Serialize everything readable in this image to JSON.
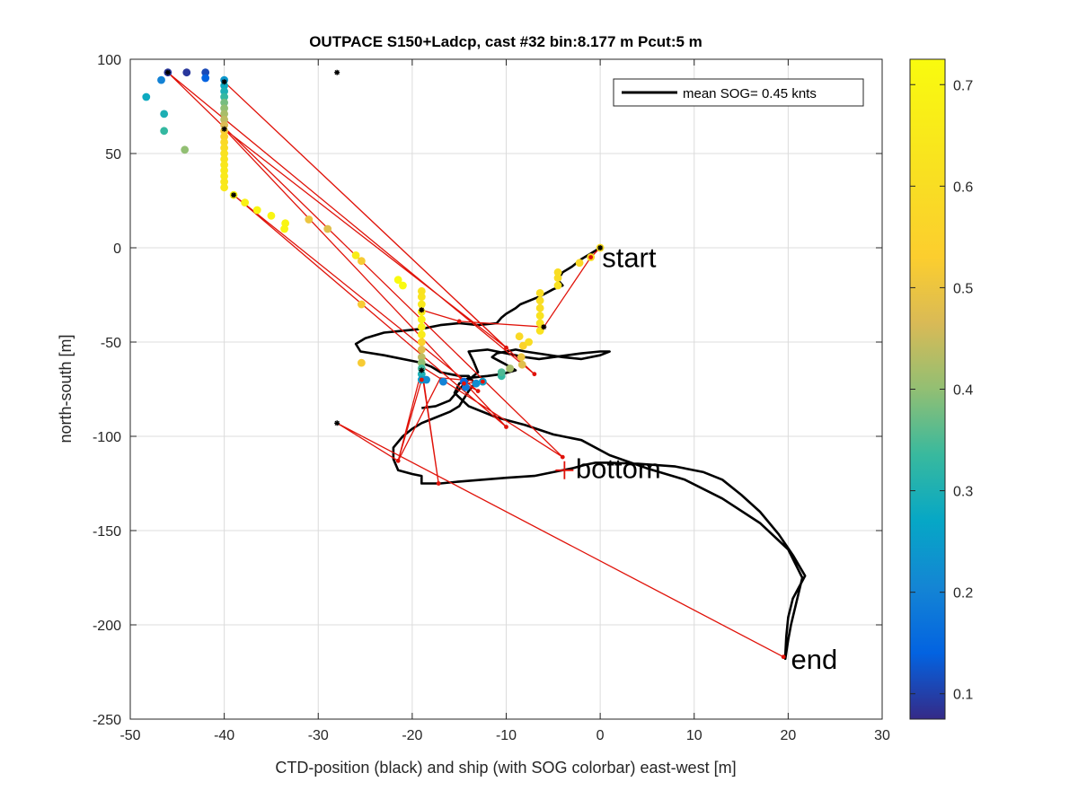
{
  "chart_data": {
    "type": "scatter",
    "title": "OUTPACE S150+Ladcp, cast #32 bin:8.177 m  Pcut:5 m",
    "xlabel": "CTD-position (black) and ship (with SOG colorbar) east-west [m]",
    "ylabel": "north-south [m]",
    "xlim": [
      -50,
      30
    ],
    "ylim": [
      -250,
      100
    ],
    "xticks": [
      -50,
      -40,
      -30,
      -20,
      -10,
      0,
      10,
      20,
      30
    ],
    "yticks": [
      100,
      50,
      0,
      -50,
      -100,
      -150,
      -200,
      -250
    ],
    "grid": true,
    "legend": {
      "label": "mean SOG=  0.45 knts",
      "location": "top-right"
    },
    "colorbar": {
      "ticks": [
        0.1,
        0.2,
        0.3,
        0.4,
        0.5,
        0.6,
        0.7
      ],
      "range": [
        0.075,
        0.725
      ]
    },
    "annotations": [
      {
        "text": "start",
        "x": 0.2,
        "y": -5
      },
      {
        "text": "bottom",
        "x": -2.6,
        "y": -117
      },
      {
        "text": "end",
        "x": 20.3,
        "y": -218
      }
    ],
    "ctd_track": [
      [
        0,
        0
      ],
      [
        -1,
        -3
      ],
      [
        -2,
        -6
      ],
      [
        -2.5,
        -8
      ],
      [
        -3,
        -10
      ],
      [
        -4,
        -13
      ],
      [
        -4.5,
        -17
      ],
      [
        -4,
        -20
      ],
      [
        -5,
        -22
      ],
      [
        -6.5,
        -26
      ],
      [
        -8.5,
        -30
      ],
      [
        -9,
        -32
      ],
      [
        -10,
        -35
      ],
      [
        -10.5,
        -37
      ],
      [
        -11,
        -40
      ],
      [
        -13,
        -41
      ],
      [
        -15,
        -40
      ],
      [
        -17,
        -41
      ],
      [
        -19,
        -43
      ],
      [
        -21,
        -44
      ],
      [
        -23,
        -45
      ],
      [
        -25,
        -48
      ],
      [
        -26,
        -51
      ],
      [
        -25.5,
        -55
      ],
      [
        -23,
        -57
      ],
      [
        -22,
        -58
      ],
      [
        -20,
        -60
      ],
      [
        -19,
        -61
      ],
      [
        -18,
        -63
      ],
      [
        -17,
        -66
      ],
      [
        -16,
        -67
      ],
      [
        -15,
        -68
      ],
      [
        -14,
        -68
      ],
      [
        -13.5,
        -71
      ],
      [
        -13.5,
        -73
      ],
      [
        -14,
        -76
      ],
      [
        -14.5,
        -80
      ],
      [
        -15,
        -84
      ],
      [
        -16,
        -87
      ],
      [
        -17.5,
        -90
      ],
      [
        -19,
        -93
      ],
      [
        -20,
        -96
      ],
      [
        -21,
        -100
      ],
      [
        -22,
        -106
      ],
      [
        -22,
        -112
      ],
      [
        -21.5,
        -118
      ],
      [
        -20,
        -120
      ],
      [
        -19,
        -121
      ],
      [
        -19,
        -125
      ],
      [
        -17,
        -125
      ],
      [
        -15,
        -124
      ],
      [
        -10,
        -122
      ],
      [
        -7,
        -121
      ],
      [
        -5,
        -119
      ],
      [
        -3,
        -117
      ],
      [
        -1.5,
        -115
      ],
      [
        -0.5,
        -114
      ],
      [
        1,
        -114
      ],
      [
        4,
        -114.5
      ],
      [
        8,
        -116
      ],
      [
        11,
        -119
      ],
      [
        13,
        -123
      ],
      [
        15,
        -131
      ],
      [
        17,
        -140
      ],
      [
        19,
        -152
      ],
      [
        20.5,
        -163
      ],
      [
        21.8,
        -174
      ],
      [
        20.5,
        -186
      ],
      [
        20,
        -196
      ],
      [
        19.8,
        -206
      ],
      [
        19.7,
        -216
      ],
      [
        19.7,
        -218
      ],
      [
        20,
        -208
      ],
      [
        20.3,
        -200
      ],
      [
        21.5,
        -175
      ],
      [
        20,
        -160
      ],
      [
        17,
        -146
      ],
      [
        13,
        -133
      ],
      [
        9,
        -123
      ],
      [
        5,
        -117
      ],
      [
        1,
        -110
      ],
      [
        -2,
        -102
      ],
      [
        -5,
        -99
      ],
      [
        -8,
        -94
      ],
      [
        -11,
        -90
      ],
      [
        -14,
        -84
      ],
      [
        -15.5,
        -77
      ],
      [
        -15,
        -72
      ],
      [
        -14,
        -69
      ],
      [
        -12,
        -68
      ],
      [
        -10.5,
        -67
      ],
      [
        -9,
        -65
      ],
      [
        -10,
        -62
      ],
      [
        -11.5,
        -58
      ],
      [
        -11,
        -56
      ],
      [
        -9,
        -54
      ],
      [
        -8,
        -55
      ],
      [
        -6,
        -56.5
      ],
      [
        -4,
        -58
      ],
      [
        -2,
        -59
      ],
      [
        0,
        -57
      ],
      [
        1,
        -55
      ],
      [
        0,
        -55
      ],
      [
        -2,
        -56
      ],
      [
        -3.5,
        -57
      ],
      [
        -5,
        -58
      ],
      [
        -6.5,
        -59
      ],
      [
        -8,
        -58
      ],
      [
        -10,
        -56
      ],
      [
        -12,
        -54
      ],
      [
        -14,
        -55
      ],
      [
        -13.5,
        -60
      ],
      [
        -13,
        -66
      ],
      [
        -14,
        -70
      ],
      [
        -15,
        -75
      ],
      [
        -16,
        -81
      ],
      [
        -17.5,
        -84
      ],
      [
        -19,
        -85
      ]
    ],
    "red_track": [
      [
        0,
        0
      ],
      [
        -1,
        -5
      ],
      [
        -6,
        -42
      ],
      [
        -15,
        -39
      ],
      [
        -19,
        -33
      ],
      [
        -19,
        -70
      ],
      [
        -21.5,
        -113
      ],
      [
        -19,
        -65
      ],
      [
        -17.2,
        -125
      ],
      [
        -19,
        -63
      ],
      [
        -4,
        -111
      ],
      [
        -46,
        93
      ],
      [
        -7,
        -67
      ],
      [
        -40,
        88
      ],
      [
        -10,
        -53
      ],
      [
        -40,
        63
      ],
      [
        -10,
        -95
      ],
      [
        -39,
        28
      ],
      [
        -13,
        -76
      ],
      [
        -14.5,
        -72
      ],
      [
        -12.5,
        -71
      ],
      [
        -17,
        -69
      ],
      [
        -21.5,
        -113
      ],
      [
        -28,
        -93
      ],
      [
        19.5,
        -217
      ]
    ],
    "red_markers": [
      [
        -1,
        -5
      ],
      [
        -6,
        -42
      ],
      [
        -15,
        -39
      ],
      [
        -19,
        -33
      ],
      [
        -19,
        -70
      ],
      [
        -21.5,
        -113
      ],
      [
        -17.2,
        -125
      ],
      [
        -4,
        -111
      ],
      [
        -7,
        -67
      ],
      [
        -10,
        -53
      ],
      [
        -10,
        -95
      ],
      [
        -13,
        -76
      ],
      [
        -12.5,
        -71
      ],
      [
        -14.5,
        -72
      ],
      [
        19.5,
        -217
      ]
    ],
    "black_markers": [
      [
        0,
        0
      ],
      [
        -6,
        -42
      ],
      [
        -19,
        -33
      ],
      [
        -19,
        -65
      ],
      [
        -46,
        93
      ],
      [
        -40,
        88
      ],
      [
        -40,
        63
      ],
      [
        -39,
        28
      ],
      [
        -28,
        93
      ],
      [
        -28,
        -93
      ]
    ],
    "bottom_marker": [
      -3.8,
      -118
    ],
    "ship_points": [
      [
        -46,
        93,
        0.09
      ],
      [
        -44,
        93,
        0.09
      ],
      [
        -42,
        93,
        0.11
      ],
      [
        -42,
        90,
        0.14
      ],
      [
        -46.7,
        89,
        0.2
      ],
      [
        -48.3,
        80,
        0.28
      ],
      [
        -46.4,
        71,
        0.3
      ],
      [
        -46.4,
        62,
        0.33
      ],
      [
        -44.2,
        52,
        0.4
      ],
      [
        -40,
        89,
        0.24
      ],
      [
        -40,
        86,
        0.28
      ],
      [
        -40,
        83,
        0.3
      ],
      [
        -40,
        80,
        0.33
      ],
      [
        -40,
        77,
        0.38
      ],
      [
        -40,
        74,
        0.4
      ],
      [
        -40,
        71,
        0.42
      ],
      [
        -40,
        68,
        0.44
      ],
      [
        -40,
        65,
        0.47
      ],
      [
        -40,
        62,
        0.52
      ],
      [
        -40,
        59,
        0.55
      ],
      [
        -40,
        56,
        0.58
      ],
      [
        -40,
        53,
        0.6
      ],
      [
        -40,
        50,
        0.62
      ],
      [
        -40,
        47,
        0.63
      ],
      [
        -40,
        44,
        0.64
      ],
      [
        -40,
        41,
        0.65
      ],
      [
        -40,
        38,
        0.65
      ],
      [
        -40,
        35,
        0.64
      ],
      [
        -40,
        32,
        0.65
      ],
      [
        -39,
        28,
        0.7
      ],
      [
        -37.8,
        24,
        0.68
      ],
      [
        -36.5,
        20,
        0.7
      ],
      [
        -35,
        17,
        0.7
      ],
      [
        -33.5,
        13,
        0.7
      ],
      [
        -33.6,
        10,
        0.7
      ],
      [
        -31,
        15,
        0.5
      ],
      [
        -29,
        10,
        0.48
      ],
      [
        -26,
        -4,
        0.66
      ],
      [
        -25.4,
        -7,
        0.52
      ],
      [
        -25.4,
        -30,
        0.52
      ],
      [
        -21.5,
        -17,
        0.72
      ],
      [
        -21,
        -20,
        0.72
      ],
      [
        -25.4,
        -61,
        0.52
      ],
      [
        -19,
        -23,
        0.62
      ],
      [
        -19,
        -26,
        0.63
      ],
      [
        -19,
        -30,
        0.65
      ],
      [
        -19,
        -34,
        0.66
      ],
      [
        -19,
        -38,
        0.67
      ],
      [
        -19,
        -42,
        0.68
      ],
      [
        -19,
        -46,
        0.66
      ],
      [
        -19,
        -50,
        0.55
      ],
      [
        -19,
        -54,
        0.48
      ],
      [
        -19,
        -58,
        0.44
      ],
      [
        -19,
        -61,
        0.4
      ],
      [
        -19,
        -64,
        0.34
      ],
      [
        -19,
        -67,
        0.3
      ],
      [
        -19,
        -70,
        0.25
      ],
      [
        -18.5,
        -70,
        0.22
      ],
      [
        -16.7,
        -71,
        0.2
      ],
      [
        -14.5,
        -71,
        0.15
      ],
      [
        -14.3,
        -74,
        0.18
      ],
      [
        -13.2,
        -72,
        0.22
      ],
      [
        -12.5,
        -71,
        0.25
      ],
      [
        -10.5,
        -68,
        0.33
      ],
      [
        -10.5,
        -66,
        0.35
      ],
      [
        -9.6,
        -64,
        0.42
      ],
      [
        -8.3,
        -62,
        0.48
      ],
      [
        -8.4,
        -58,
        0.5
      ],
      [
        -8.2,
        -52,
        0.55
      ],
      [
        -7.6,
        -50,
        0.6
      ],
      [
        -8.6,
        -47,
        0.58
      ],
      [
        -6.4,
        -44,
        0.62
      ],
      [
        -6.4,
        -40,
        0.62
      ],
      [
        -6.4,
        -36,
        0.62
      ],
      [
        -6.4,
        -32,
        0.6
      ],
      [
        -6.4,
        -28,
        0.6
      ],
      [
        -6.4,
        -24,
        0.6
      ],
      [
        -4.5,
        -20,
        0.62
      ],
      [
        -4.5,
        -16,
        0.6
      ],
      [
        -4.5,
        -13,
        0.6
      ],
      [
        -2.2,
        -8,
        0.58
      ],
      [
        -1,
        -5,
        0.6
      ],
      [
        0,
        0,
        0.6
      ]
    ]
  }
}
